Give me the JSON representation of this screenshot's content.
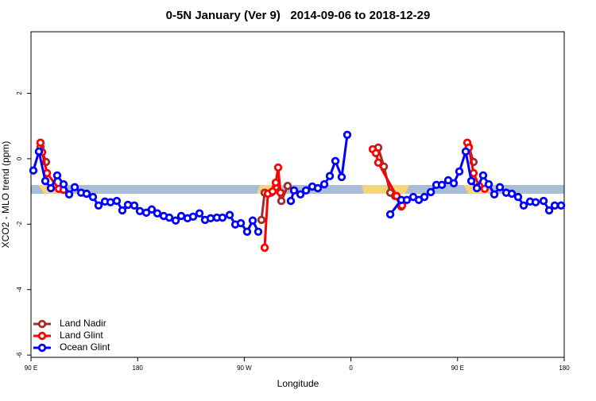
{
  "chart_data": {
    "type": "line",
    "title": "0-5N January (Ver 9)   2014-09-06 to 2018-12-29",
    "xlabel": "Longitude",
    "ylabel": "XCO2 - MLO trend (ppm)",
    "xlim": [
      90,
      540
    ],
    "xticks": [
      90,
      180,
      {
        "value": 270,
        "label": "90 W"
      },
      {
        "value": 360,
        "label": "0"
      },
      {
        "value": 450,
        "label": "90 E"
      },
      {
        "value": 540,
        "label": "180"
      }
    ],
    "xtick_first_label": "90 E",
    "ylim": [
      -6.07,
      3.88
    ],
    "yticks": [
      -6,
      -4,
      -2,
      0,
      2
    ],
    "legend": "bottom-left",
    "series": [
      {
        "name": "Land Nadir",
        "color": "#a52a2a",
        "x": [
          98.0,
          102.7,
          null,
          284.5,
          287.2,
          292.6,
          296.6,
          301.3,
          306.6,
          null,
          383.1,
          387.8,
          393.2,
          397.2,
          402.5,
          null,
          459.5,
          463.5
        ],
        "values": [
          0.36,
          -0.1,
          null,
          -1.87,
          -1.04,
          -1.04,
          -0.87,
          -1.29,
          -0.83,
          null,
          0.34,
          -0.24,
          -1.04,
          -1.14,
          -1.46,
          null,
          0.36,
          -0.1
        ]
      },
      {
        "name": "Land Glint",
        "color": "#ff0000",
        "x": [
          98.0,
          99.4,
          103.5,
          113.5,
          117.5,
          null,
          287.2,
          289.9,
          293.9,
          296.6,
          298.6,
          300.6,
          null,
          378.4,
          381.1,
          383.1,
          398.5,
          403.2,
          null,
          458.2,
          459.5,
          463.5,
          468.2,
          472.9
        ],
        "values": [
          0.49,
          0.2,
          -0.44,
          -0.92,
          -0.95,
          null,
          -2.72,
          -1.07,
          -1.0,
          -0.73,
          -0.27,
          -1.04,
          null,
          0.29,
          0.17,
          -0.12,
          -1.14,
          -1.43,
          null,
          0.49,
          0.34,
          -0.44,
          -0.83,
          -0.92
        ]
      },
      {
        "name": "Ocean Glint",
        "color": "#0000ff",
        "x": [
          92.0,
          96.7,
          102.1,
          106.8,
          112.1,
          117.5,
          122.2,
          126.9,
          132.3,
          136.9,
          142.3,
          147.0,
          152.4,
          157.1,
          162.4,
          167.1,
          171.8,
          177.2,
          181.9,
          187.3,
          191.9,
          196.6,
          202.0,
          206.7,
          212.1,
          216.8,
          222.1,
          226.8,
          232.2,
          236.9,
          241.6,
          246.9,
          251.6,
          257.7,
          262.4,
          267.1,
          272.4,
          277.1,
          281.8,
          null,
          309.3,
          312.0,
          317.4,
          322.1,
          327.4,
          332.1,
          337.5,
          342.2,
          346.9,
          352.2,
          356.9,
          null,
          393.2,
          402.5,
          407.2,
          412.6,
          417.3,
          422.0,
          427.4,
          432.1,
          436.8,
          442.1,
          446.8,
          451.5,
          456.9,
          461.6,
          466.3,
          471.6,
          476.3,
          481.0,
          485.7,
          491.1,
          495.8,
          501.1,
          505.8,
          511.2,
          515.9,
          522.6,
          527.3,
          532.0,
          537.4
        ],
        "values": [
          -0.36,
          0.22,
          -0.68,
          -0.9,
          -0.51,
          -0.78,
          -1.09,
          -0.87,
          -1.04,
          -1.07,
          -1.17,
          -1.43,
          -1.31,
          -1.33,
          -1.29,
          -1.58,
          -1.41,
          -1.43,
          -1.6,
          -1.65,
          -1.55,
          -1.67,
          -1.75,
          -1.8,
          -1.89,
          -1.75,
          -1.82,
          -1.77,
          -1.67,
          -1.87,
          -1.82,
          -1.8,
          -1.8,
          -1.72,
          -2.01,
          -1.97,
          -2.23,
          -1.89,
          -2.23,
          null,
          -1.29,
          -0.97,
          -1.09,
          -0.97,
          -0.85,
          -0.9,
          -0.78,
          -0.53,
          -0.07,
          -0.56,
          0.73,
          null,
          -1.7,
          -1.26,
          -1.26,
          -1.17,
          -1.26,
          -1.17,
          -1.02,
          -0.8,
          -0.8,
          -0.66,
          -0.75,
          -0.39,
          0.22,
          -0.68,
          -0.9,
          -0.51,
          -0.78,
          -1.09,
          -0.87,
          -1.04,
          -1.07,
          -1.17,
          -1.43,
          -1.31,
          -1.33,
          -1.29,
          -1.58,
          -1.43,
          -1.43
        ]
      }
    ]
  }
}
